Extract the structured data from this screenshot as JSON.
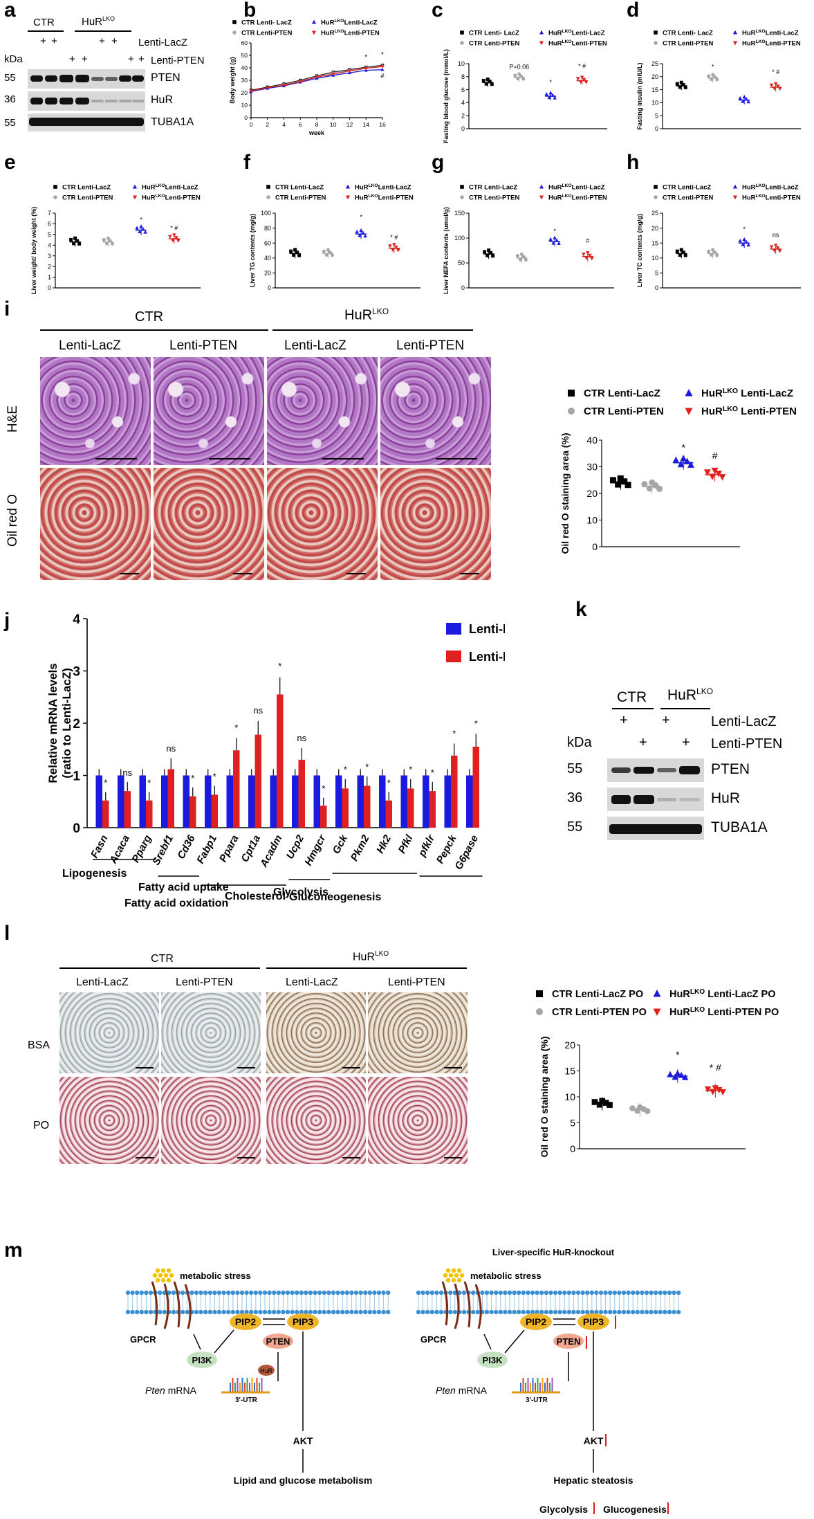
{
  "panel_letters": {
    "a": "a",
    "b": "b",
    "c": "c",
    "d": "d",
    "e": "e",
    "f": "f",
    "g": "g",
    "h": "h",
    "i": "i",
    "j": "j",
    "k": "k",
    "l": "l",
    "m": "m"
  },
  "panel_a": {
    "ctr": "CTR",
    "hur": "HuR",
    "lko": "LKO",
    "kda": "kDa",
    "row1_label": "Lenti-LacZ",
    "row2_label": "Lenti-PTEN",
    "plus": "+",
    "mw": [
      "55",
      "36",
      "55"
    ],
    "proteins": [
      "PTEN",
      "HuR",
      "TUBA1A"
    ]
  },
  "panel_k": {
    "ctr": "CTR",
    "hur": "HuR",
    "lko": "LKO",
    "kda": "kDa",
    "row1_label": "Lenti-LacZ",
    "row2_label": "Lenti-PTEN",
    "plus": "+",
    "mw": [
      "55",
      "36",
      "55"
    ],
    "proteins": [
      "PTEN",
      "HuR",
      "TUBA1A"
    ]
  },
  "legend_small": {
    "ctr_lacz": "CTR Lenti-LacZ",
    "ctr_lacz_b": "CTR Lenti- LacZ",
    "ctr_pten": "CTR Lenti-PTEN",
    "hur": "HuR",
    "lko": "LKO",
    "lacz": "Lenti-LacZ",
    "pten": "Lenti-PTEN"
  },
  "panel_i": {
    "ctr": "CTR",
    "hur": "HuR",
    "lko": "LKO",
    "cols": [
      "Lenti-LacZ",
      "Lenti-PTEN",
      "Lenti-LacZ",
      "Lenti-PTEN"
    ],
    "rows": [
      "H&E",
      "Oil red O"
    ],
    "legend": {
      "ctr_lacz": "CTR Lenti-LacZ",
      "ctr_pten": "CTR Lenti-PTEN",
      "hur": "HuR",
      "lko": "LKO",
      "lacz": " Lenti-LacZ",
      "pten": " Lenti-PTEN"
    }
  },
  "panel_l": {
    "ctr": "CTR",
    "hur": "HuR",
    "lko": "LKO",
    "cols": [
      "Lenti-LacZ",
      "Lenti-PTEN",
      "Lenti-LacZ",
      "Lenti-PTEN"
    ],
    "rows": [
      "BSA",
      "PO"
    ],
    "legend": {
      "ctr_lacz": "CTR Lenti-LacZ PO",
      "ctr_pten": "CTR Lenti-PTEN PO",
      "hur": "HuR",
      "lko": "LKO",
      "lacz": " Lenti-LacZ PO",
      "pten": " Lenti-PTEN PO"
    }
  },
  "panel_j_groups": [
    "Lipogenesis",
    "Fatty acid uptake",
    "Fatty acid oxidation",
    "Cholesterol",
    "Glycolysis",
    "Gluconeogenesis"
  ],
  "panel_m": {
    "title_right": "Liver-specific HuR-knockout",
    "metabolic_stress": "metabolic stress",
    "gpcr": "GPCR",
    "pip2": "PIP2",
    "pip3": "PIP3",
    "pten": "PTEN",
    "pi3k": "PI3K",
    "hur": "HuR",
    "pten_mrna": "Pten",
    "mrna": " mRNA",
    "utr": "3'-UTR",
    "akt": "AKT",
    "outcome_left": "Lipid and glucose metabolism",
    "outcome_right": "Hepatic steatosis",
    "glycolysis": "Glycolysis",
    "glucogenesis": "Glucogenesis"
  },
  "colors": {
    "ctr_lacz": "#000000",
    "ctr_pten": "#a6a6a6",
    "hur_lacz": "#1a1ad8",
    "hur_pten": "#e0201a",
    "bar_lacz": "#1a1ae0",
    "bar_pten": "#e02020"
  },
  "chart_data": [
    {
      "id": "b",
      "type": "line",
      "xlabel": "week",
      "ylabel": "Body weight (g)",
      "xlim": [
        0,
        16
      ],
      "ylim": [
        0,
        60
      ],
      "x": [
        0,
        2,
        4,
        6,
        8,
        10,
        12,
        14,
        16
      ],
      "xticks": [
        "0",
        "2",
        "4",
        "6",
        "8",
        "10",
        "12",
        "14",
        "16"
      ],
      "yticks": [
        "0",
        "10",
        "20",
        "30",
        "40",
        "50",
        "60"
      ],
      "series": [
        {
          "name": "CTR Lenti- LacZ",
          "values": [
            22,
            24.5,
            27,
            30,
            33.5,
            36.5,
            38.5,
            40.5,
            42
          ]
        },
        {
          "name": "CTR Lenti-PTEN",
          "values": [
            21.5,
            24,
            26.5,
            29.5,
            33,
            36,
            38,
            40,
            41.5
          ]
        },
        {
          "name": "HuR LKO Lenti-LacZ",
          "values": [
            21,
            23.5,
            25.5,
            28.5,
            31.5,
            34,
            36,
            38,
            38.5
          ]
        },
        {
          "name": "HuR LKO Lenti-PTEN",
          "values": [
            21.5,
            24,
            26,
            29,
            32.5,
            35,
            37.5,
            39.5,
            41
          ]
        }
      ],
      "annotations": [
        "*",
        "*",
        "#"
      ]
    },
    {
      "id": "c",
      "type": "scatter",
      "ylabel": "Fasting blood glucose (mmol/L)",
      "ylim": [
        0,
        10
      ],
      "yticks": [
        "0",
        "2",
        "4",
        "6",
        "8",
        "10"
      ],
      "means": [
        7.1,
        7.9,
        5.0,
        7.4
      ],
      "annotations": [
        "P=0.06",
        "*",
        "* #"
      ]
    },
    {
      "id": "d",
      "type": "scatter",
      "ylabel": "Fasting insulin (mIU/L)",
      "ylim": [
        0,
        25
      ],
      "yticks": [
        "0",
        "5",
        "10",
        "15",
        "20",
        "25"
      ],
      "means": [
        16.5,
        19.5,
        11,
        16
      ],
      "annotations": [
        "*",
        "* #"
      ]
    },
    {
      "id": "e",
      "type": "scatter",
      "ylabel": "Liver weight/ body weight (%)",
      "ylim": [
        0,
        7
      ],
      "yticks": [
        "0",
        "1",
        "2",
        "3",
        "4",
        "5",
        "6",
        "7"
      ],
      "means": [
        4.3,
        4.3,
        5.4,
        4.6
      ],
      "annotations": [
        "*",
        "* #"
      ]
    },
    {
      "id": "f",
      "type": "scatter",
      "ylabel": "Liver TG contents (mg/g)",
      "ylim": [
        0,
        100
      ],
      "yticks": [
        "0",
        "20",
        "40",
        "60",
        "80",
        "100"
      ],
      "means": [
        46,
        46,
        72,
        53
      ],
      "annotations": [
        "*",
        "* #"
      ]
    },
    {
      "id": "g",
      "type": "scatter",
      "ylabel": "Liver NEFA contents (umol/g)",
      "ylim": [
        0,
        150
      ],
      "yticks": [
        "0",
        "50",
        "100",
        "150"
      ],
      "means": [
        68,
        60,
        93,
        63
      ],
      "annotations": [
        "*",
        "#"
      ]
    },
    {
      "id": "h",
      "type": "scatter",
      "ylabel": "Liver TC contents (mg/g)",
      "ylim": [
        0,
        25
      ],
      "yticks": [
        "0",
        "5",
        "10",
        "15",
        "20",
        "25"
      ],
      "means": [
        11.5,
        11.5,
        15,
        13
      ],
      "annotations": [
        "*",
        "ns"
      ]
    },
    {
      "id": "i",
      "type": "scatter",
      "ylabel": "Oil red O staining area (%)",
      "ylim": [
        0,
        40
      ],
      "yticks": [
        "0",
        "10",
        "20",
        "30",
        "40"
      ],
      "means": [
        24,
        22.5,
        31.5,
        27
      ],
      "annotations": [
        "*",
        "#"
      ]
    },
    {
      "id": "j",
      "type": "bar",
      "ylabel": "Relative mRNA levels (ratio to Lenti-LacZ)",
      "ylim": [
        0,
        4
      ],
      "yticks": [
        "0",
        "1",
        "2",
        "3",
        "4"
      ],
      "categories": [
        "Fasn",
        "Acaca",
        "Pparg",
        "Srebf1",
        "Cd36",
        "Fabp1",
        "Ppara",
        "Cpt1a",
        "Acadm",
        "Ucp2",
        "Hmgcr",
        "Gck",
        "Pkm2",
        "Hk2",
        "Pfkl",
        "pfklr",
        "Pepck",
        "G6pase"
      ],
      "series": [
        {
          "name": "Lenti-LacZ",
          "values": [
            1,
            1,
            1,
            1,
            1,
            1,
            1,
            1,
            1,
            1,
            1,
            1,
            1,
            1,
            1,
            1,
            1,
            1
          ]
        },
        {
          "name": "Lenti-PTEN",
          "values": [
            0.52,
            0.7,
            0.52,
            1.12,
            0.6,
            0.63,
            1.48,
            1.78,
            2.55,
            1.3,
            0.42,
            0.75,
            0.8,
            0.52,
            0.75,
            0.7,
            1.38,
            1.55
          ]
        }
      ],
      "annotations": [
        "*",
        "ns",
        "*",
        "ns",
        "*",
        "*",
        "*",
        "ns",
        "*",
        "ns",
        "*",
        "*",
        "*",
        "*",
        "*",
        "*",
        "*",
        "*"
      ]
    },
    {
      "id": "l",
      "type": "scatter",
      "ylabel": "Oil red O staining area (%)",
      "ylim": [
        0,
        20
      ],
      "yticks": [
        "0",
        "5",
        "10",
        "15",
        "20"
      ],
      "means": [
        8.7,
        7.5,
        14,
        11.2
      ],
      "annotations": [
        "*",
        "* #"
      ]
    }
  ]
}
